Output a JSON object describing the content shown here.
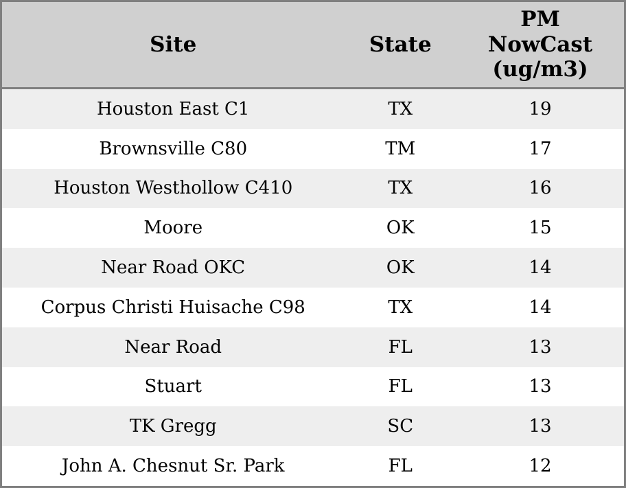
{
  "table": {
    "columns": [
      {
        "key": "site",
        "label": "Site"
      },
      {
        "key": "state",
        "label": "State"
      },
      {
        "key": "pm",
        "label": "PM NowCast (ug/m3)"
      }
    ],
    "rows": [
      {
        "site": "Houston East C1",
        "state": "TX",
        "pm": "19"
      },
      {
        "site": "Brownsville C80",
        "state": "TM",
        "pm": "17"
      },
      {
        "site": "Houston Westhollow C410",
        "state": "TX",
        "pm": "16"
      },
      {
        "site": "Moore",
        "state": "OK",
        "pm": "15"
      },
      {
        "site": "Near Road OKC",
        "state": "OK",
        "pm": "14"
      },
      {
        "site": "Corpus Christi Huisache C98",
        "state": "TX",
        "pm": "14"
      },
      {
        "site": "Near Road",
        "state": "FL",
        "pm": "13"
      },
      {
        "site": "Stuart",
        "state": "FL",
        "pm": "13"
      },
      {
        "site": "TK Gregg",
        "state": "SC",
        "pm": "13"
      },
      {
        "site": "John A. Chesnut Sr. Park",
        "state": "FL",
        "pm": "12"
      }
    ]
  },
  "colors": {
    "border": "#7f7f7f",
    "header_bg": "#d0d0d0",
    "row_alt": "#eeeeee",
    "row": "#ffffff",
    "text": "#000000"
  }
}
